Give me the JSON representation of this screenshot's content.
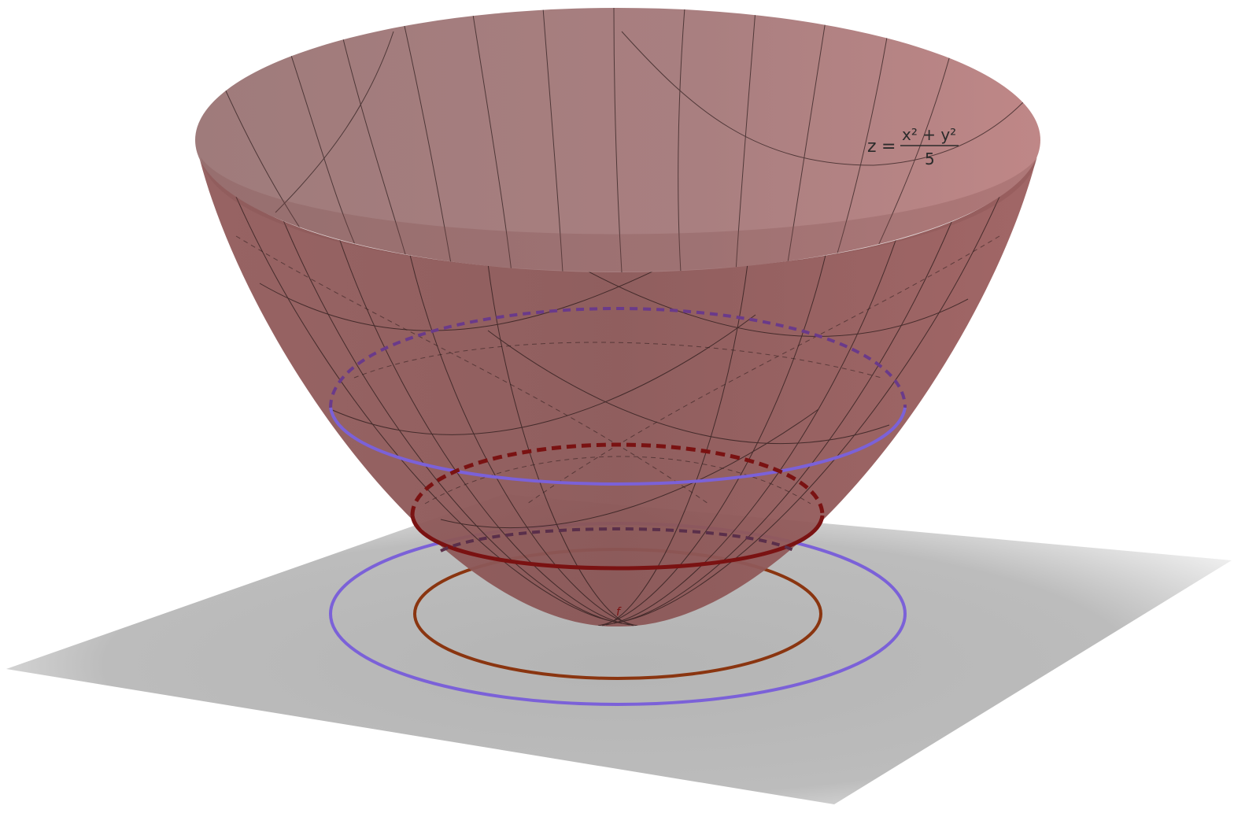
{
  "surface": {
    "equation": {
      "lhs": "z",
      "equals": "=",
      "numerator": "x² + y²",
      "denominator": "5"
    },
    "color": "#a26b6b"
  },
  "level_curves": [
    {
      "name": "upper-level-curve",
      "color": "#7b61d8"
    },
    {
      "name": "lower-level-curve",
      "color": "#7a1212"
    }
  ],
  "projections": [
    {
      "name": "outer-projection",
      "color": "#7b61d8"
    },
    {
      "name": "inner-projection",
      "color": "#8a3510"
    }
  ],
  "plane_color": "#bdbdbd",
  "label_f": "f"
}
